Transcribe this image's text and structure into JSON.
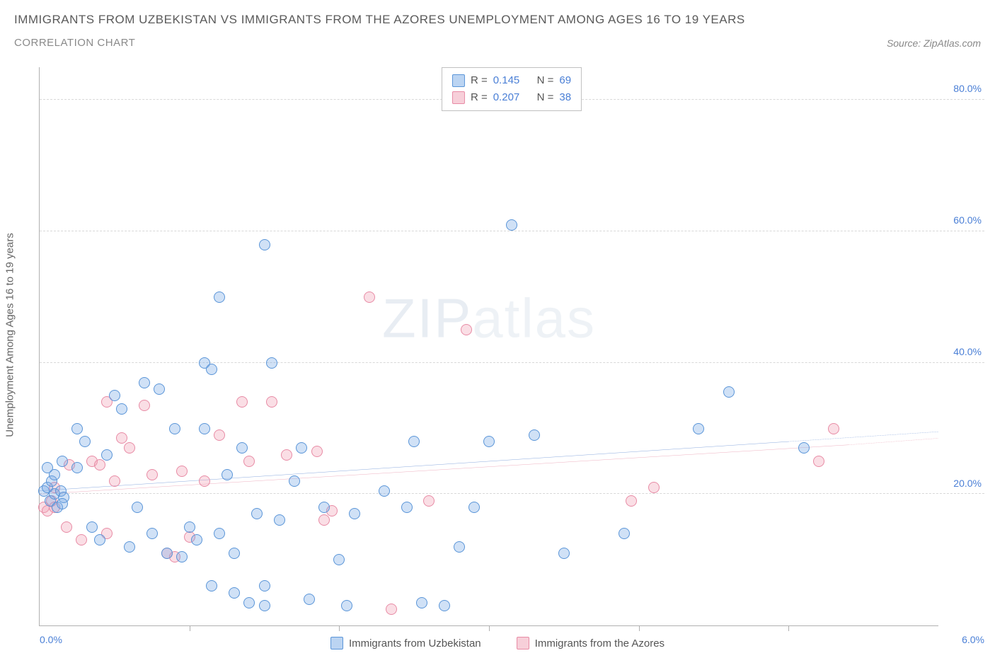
{
  "title": "IMMIGRANTS FROM UZBEKISTAN VS IMMIGRANTS FROM THE AZORES UNEMPLOYMENT AMONG AGES 16 TO 19 YEARS",
  "subtitle": "CORRELATION CHART",
  "source_label": "Source: ZipAtlas.com",
  "y_axis_label": "Unemployment Among Ages 16 to 19 years",
  "watermark_bold": "ZIP",
  "watermark_light": "atlas",
  "legend": {
    "series": [
      {
        "r_label": "R =",
        "r_value": "0.145",
        "n_label": "N =",
        "n_value": "69",
        "color_class": "blue"
      },
      {
        "r_label": "R =",
        "r_value": "0.207",
        "n_label": "N =",
        "n_value": "38",
        "color_class": "pink"
      }
    ]
  },
  "bottom_legend": [
    {
      "label": "Immigrants from Uzbekistan",
      "color_class": "blue"
    },
    {
      "label": "Immigrants from the Azores",
      "color_class": "pink"
    }
  ],
  "axes": {
    "x_min": 0.0,
    "x_max": 6.0,
    "y_min": 0.0,
    "y_max": 85.0,
    "y_ticks": [
      {
        "value": 20.0,
        "label": "20.0%"
      },
      {
        "value": 40.0,
        "label": "40.0%"
      },
      {
        "value": 60.0,
        "label": "60.0%"
      },
      {
        "value": 80.0,
        "label": "80.0%"
      }
    ],
    "x_ticks_minor": [
      1.0,
      2.0,
      3.0,
      4.0,
      5.0
    ],
    "x_tick_left": "0.0%",
    "x_tick_right": "6.0%"
  },
  "trend_lines": {
    "blue": {
      "y_start": 20.5,
      "y_end_solid_x": 5.0,
      "y_end_solid": 28.0,
      "y_end": 29.5,
      "color": "#3a6fc8"
    },
    "pink": {
      "y_start": 20.0,
      "y_end_solid_x": 5.4,
      "y_end_solid": 27.5,
      "y_end": 28.5,
      "color": "#e07a95"
    }
  },
  "series_blue": [
    [
      0.03,
      20.5
    ],
    [
      0.05,
      21.0
    ],
    [
      0.07,
      19.0
    ],
    [
      0.08,
      22.0
    ],
    [
      0.1,
      20.0
    ],
    [
      0.1,
      23.0
    ],
    [
      0.12,
      18.0
    ],
    [
      0.14,
      20.5
    ],
    [
      0.15,
      25.0
    ],
    [
      0.16,
      19.5
    ],
    [
      0.15,
      18.5
    ],
    [
      0.05,
      24.0
    ],
    [
      0.25,
      30.0
    ],
    [
      0.3,
      28.0
    ],
    [
      0.35,
      15.0
    ],
    [
      0.4,
      13.0
    ],
    [
      0.45,
      26.0
    ],
    [
      0.5,
      35.0
    ],
    [
      0.55,
      33.0
    ],
    [
      0.6,
      12.0
    ],
    [
      0.65,
      18.0
    ],
    [
      0.7,
      37.0
    ],
    [
      0.25,
      24.0
    ],
    [
      0.75,
      14.0
    ],
    [
      0.8,
      36.0
    ],
    [
      0.85,
      11.0
    ],
    [
      0.9,
      30.0
    ],
    [
      0.95,
      10.5
    ],
    [
      1.0,
      15.0
    ],
    [
      1.05,
      13.0
    ],
    [
      1.1,
      30.0
    ],
    [
      1.1,
      40.0
    ],
    [
      1.15,
      39.0
    ],
    [
      1.15,
      6.0
    ],
    [
      1.2,
      14.0
    ],
    [
      1.2,
      50.0
    ],
    [
      1.25,
      23.0
    ],
    [
      1.3,
      11.0
    ],
    [
      1.3,
      5.0
    ],
    [
      1.35,
      27.0
    ],
    [
      1.4,
      3.5
    ],
    [
      1.45,
      17.0
    ],
    [
      1.5,
      58.0
    ],
    [
      1.5,
      6.0
    ],
    [
      1.5,
      3.0
    ],
    [
      1.55,
      40.0
    ],
    [
      1.6,
      16.0
    ],
    [
      1.7,
      22.0
    ],
    [
      1.75,
      27.0
    ],
    [
      1.8,
      4.0
    ],
    [
      1.9,
      18.0
    ],
    [
      2.0,
      10.0
    ],
    [
      2.05,
      3.0
    ],
    [
      2.1,
      17.0
    ],
    [
      2.3,
      20.5
    ],
    [
      2.45,
      18.0
    ],
    [
      2.5,
      28.0
    ],
    [
      2.55,
      3.5
    ],
    [
      2.7,
      3.0
    ],
    [
      2.8,
      12.0
    ],
    [
      2.9,
      18.0
    ],
    [
      3.0,
      28.0
    ],
    [
      3.15,
      61.0
    ],
    [
      3.3,
      29.0
    ],
    [
      3.5,
      11.0
    ],
    [
      3.9,
      14.0
    ],
    [
      4.4,
      30.0
    ],
    [
      4.6,
      35.5
    ],
    [
      5.1,
      27.0
    ]
  ],
  "series_pink": [
    [
      0.03,
      18.0
    ],
    [
      0.05,
      17.5
    ],
    [
      0.08,
      19.0
    ],
    [
      0.1,
      18.0
    ],
    [
      0.1,
      21.0
    ],
    [
      0.18,
      15.0
    ],
    [
      0.2,
      24.5
    ],
    [
      0.28,
      13.0
    ],
    [
      0.35,
      25.0
    ],
    [
      0.4,
      24.5
    ],
    [
      0.45,
      34.0
    ],
    [
      0.45,
      14.0
    ],
    [
      0.5,
      22.0
    ],
    [
      0.55,
      28.5
    ],
    [
      0.6,
      27.0
    ],
    [
      0.7,
      33.5
    ],
    [
      0.75,
      23.0
    ],
    [
      0.85,
      11.0
    ],
    [
      0.9,
      10.5
    ],
    [
      0.95,
      23.5
    ],
    [
      1.0,
      13.5
    ],
    [
      1.1,
      22.0
    ],
    [
      1.2,
      29.0
    ],
    [
      1.35,
      34.0
    ],
    [
      1.4,
      25.0
    ],
    [
      1.55,
      34.0
    ],
    [
      1.65,
      26.0
    ],
    [
      1.85,
      26.5
    ],
    [
      1.9,
      16.0
    ],
    [
      1.95,
      17.5
    ],
    [
      2.2,
      50.0
    ],
    [
      2.35,
      2.5
    ],
    [
      2.6,
      19.0
    ],
    [
      2.85,
      45.0
    ],
    [
      3.95,
      19.0
    ],
    [
      4.1,
      21.0
    ],
    [
      5.2,
      25.0
    ],
    [
      5.3,
      30.0
    ]
  ]
}
